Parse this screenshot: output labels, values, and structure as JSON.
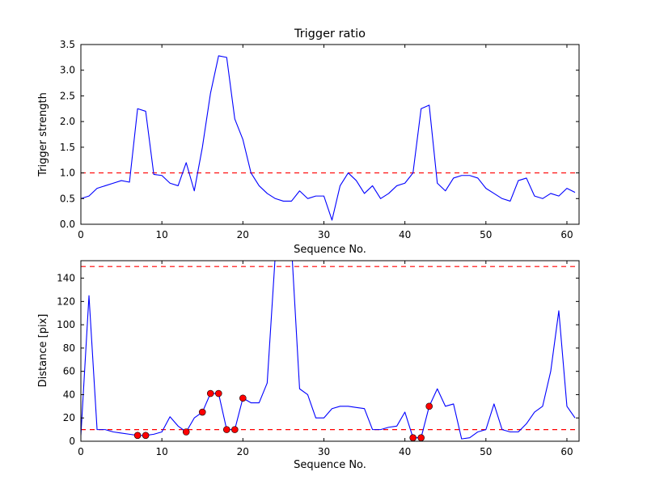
{
  "figure": {
    "background": "#ffffff",
    "border_color": "#000000"
  },
  "chart_data": [
    {
      "type": "line",
      "title": "Trigger ratio",
      "xlabel": "Sequence No.",
      "ylabel": "Trigger strength",
      "xlim": [
        0,
        61.5
      ],
      "ylim": [
        0,
        3.5
      ],
      "xticks": [
        0,
        10,
        20,
        30,
        40,
        50,
        60
      ],
      "xtick_labels": [
        "0",
        "10",
        "20",
        "30",
        "40",
        "50",
        "60"
      ],
      "yticks": [
        0.0,
        0.5,
        1.0,
        1.5,
        2.0,
        2.5,
        3.0,
        3.5
      ],
      "ytick_labels": [
        "0.0",
        "0.5",
        "1.0",
        "1.5",
        "2.0",
        "2.5",
        "3.0",
        "3.5"
      ],
      "line_color": "#0000ff",
      "grid": false,
      "legend": "none",
      "thresholds": [
        {
          "y": 1.0,
          "color": "#ff0000",
          "linestyle": "dashed"
        }
      ],
      "x": [
        0,
        1,
        2,
        3,
        4,
        5,
        6,
        7,
        8,
        9,
        10,
        11,
        12,
        13,
        14,
        15,
        16,
        17,
        18,
        19,
        20,
        21,
        22,
        23,
        24,
        25,
        26,
        27,
        28,
        29,
        30,
        31,
        32,
        33,
        34,
        35,
        36,
        37,
        38,
        39,
        40,
        41,
        42,
        43,
        44,
        45,
        46,
        47,
        48,
        49,
        50,
        51,
        52,
        53,
        54,
        55,
        56,
        57,
        58,
        59,
        60,
        61
      ],
      "y": [
        0.5,
        0.55,
        0.7,
        0.75,
        0.8,
        0.85,
        0.82,
        2.25,
        2.2,
        0.97,
        0.95,
        0.8,
        0.75,
        1.2,
        0.65,
        1.5,
        2.55,
        3.28,
        3.25,
        2.05,
        1.65,
        1.0,
        0.75,
        0.6,
        0.5,
        0.45,
        0.45,
        0.65,
        0.5,
        0.55,
        0.55,
        0.08,
        0.75,
        1.0,
        0.85,
        0.6,
        0.75,
        0.5,
        0.6,
        0.75,
        0.8,
        1.0,
        2.25,
        2.32,
        0.8,
        0.65,
        0.9,
        0.95,
        0.95,
        0.9,
        0.7,
        0.6,
        0.5,
        0.45,
        0.85,
        0.9,
        0.55,
        0.5,
        0.6,
        0.55,
        0.7,
        0.62
      ]
    },
    {
      "type": "line+scatter",
      "title": "",
      "xlabel": "Sequence No.",
      "ylabel": "Distance [pix]",
      "xlim": [
        0,
        61.5
      ],
      "ylim": [
        0,
        155
      ],
      "xticks": [
        0,
        10,
        20,
        30,
        40,
        50,
        60
      ],
      "xtick_labels": [
        "0",
        "10",
        "20",
        "30",
        "40",
        "50",
        "60"
      ],
      "yticks": [
        0,
        20,
        40,
        60,
        80,
        100,
        120,
        140
      ],
      "ytick_labels": [
        "0",
        "20",
        "40",
        "60",
        "80",
        "100",
        "120",
        "140"
      ],
      "line_color": "#0000ff",
      "grid": false,
      "legend": "none",
      "thresholds": [
        {
          "y": 150,
          "color": "#ff0000",
          "linestyle": "dashed"
        },
        {
          "y": 10,
          "color": "#ff0000",
          "linestyle": "dashed"
        }
      ],
      "x": [
        0,
        1,
        2,
        3,
        4,
        5,
        6,
        7,
        8,
        9,
        10,
        11,
        12,
        13,
        14,
        15,
        16,
        17,
        18,
        19,
        20,
        21,
        22,
        23,
        24,
        25,
        26,
        27,
        28,
        29,
        30,
        31,
        32,
        33,
        34,
        35,
        36,
        37,
        38,
        39,
        40,
        41,
        42,
        43,
        44,
        45,
        46,
        47,
        48,
        49,
        50,
        51,
        52,
        53,
        54,
        55,
        56,
        57,
        58,
        59,
        60,
        61
      ],
      "y": [
        5,
        125,
        10,
        10,
        8,
        7,
        6,
        5,
        5,
        6,
        8,
        21,
        13,
        8,
        20,
        25,
        41,
        41,
        10,
        10,
        37,
        33,
        33,
        50,
        160,
        175,
        168,
        45,
        40,
        20,
        20,
        28,
        30,
        30,
        29,
        28,
        10,
        10,
        12,
        13,
        25,
        3,
        3,
        30,
        45,
        30,
        32,
        2,
        3,
        8,
        10,
        32,
        10,
        8,
        8,
        15,
        25,
        30,
        60,
        112,
        30,
        20
      ],
      "scatter": {
        "color": "#ff0000",
        "x": [
          7,
          8,
          13,
          15,
          16,
          17,
          18,
          19,
          20,
          41,
          42,
          43
        ],
        "y": [
          5,
          5,
          8,
          25,
          41,
          41,
          10,
          10,
          37,
          3,
          3,
          30
        ]
      }
    }
  ]
}
